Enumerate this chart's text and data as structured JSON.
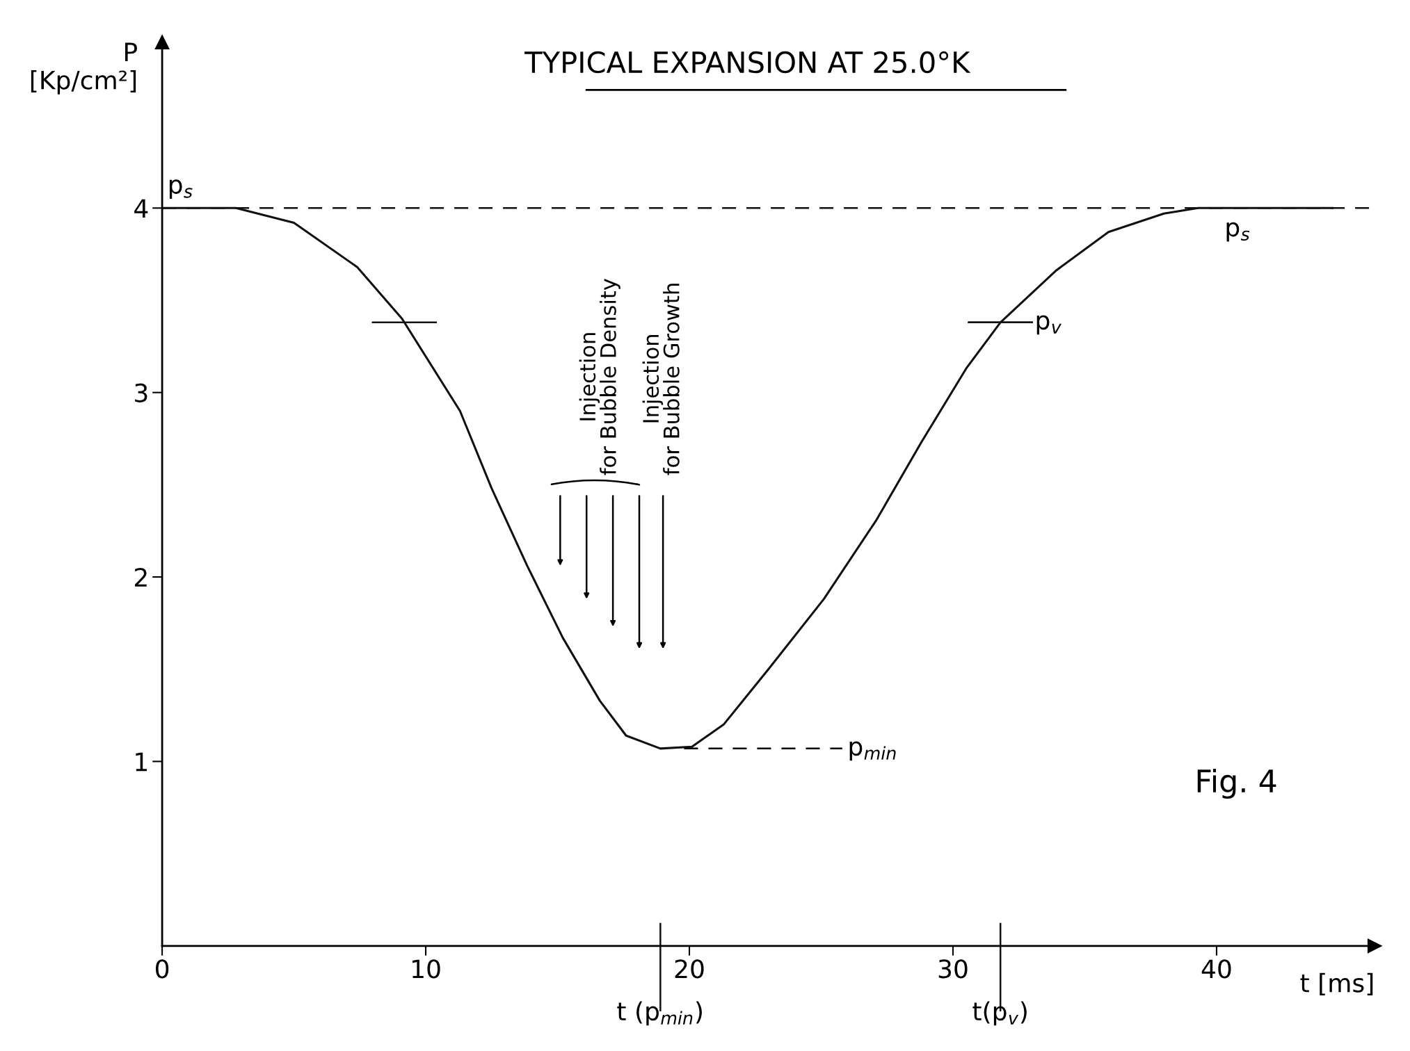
{
  "chart_data": {
    "type": "line",
    "title": "TYPICAL EXPANSION AT 25.0°K",
    "xlabel": "t [ms]",
    "ylabel": "P\n[Kp/cm²]",
    "x": [
      0,
      2.8,
      5.0,
      7.4,
      9.1,
      11.3,
      12.5,
      13.85,
      15.2,
      16.6,
      17.6,
      18.9,
      20.1,
      21.3,
      23.0,
      25.1,
      27.1,
      28.8,
      30.5,
      31.8,
      33.9,
      35.9,
      38.0,
      39.3,
      44.4
    ],
    "series": [
      {
        "color": "#111111",
        "values": [
          4.0,
          4.0,
          3.92,
          3.68,
          3.4,
          2.9,
          2.48,
          2.06,
          1.67,
          1.33,
          1.14,
          1.07,
          1.08,
          1.2,
          1.5,
          1.88,
          2.31,
          2.73,
          3.13,
          3.38,
          3.66,
          3.87,
          3.97,
          4.0,
          4.0
        ]
      }
    ],
    "xlim": [
      0,
      46
    ],
    "ylim": [
      0,
      4.9
    ],
    "xticks": [
      0,
      10,
      20,
      30,
      40
    ],
    "yticks": [
      1,
      2,
      3,
      4
    ],
    "ref_lines": [
      {
        "axis": "y",
        "value": 4,
        "label": "p$_{s}$",
        "line_style": "dashed",
        "color": "#111111"
      },
      {
        "axis": "y",
        "value": 3.38,
        "label": "p$_{v}$",
        "color": "#111111"
      },
      {
        "axis": "x",
        "value": 18.9,
        "label": "t (p$_{min}$)",
        "color": "#111111"
      },
      {
        "axis": "x",
        "value": 31.8,
        "label": "t(p$_{v}$)",
        "color": "#111111"
      }
    ],
    "annotations": [
      {
        "text": "p$_{s}$",
        "x": 39.3,
        "y": 4.0
      },
      {
        "text": "p$_{min}$",
        "x": 19.8,
        "y": 1.07
      },
      "Injection\nfor Bubble Density",
      "Injection\nfor Bubble Growth",
      "Fig. 4"
    ],
    "grid": false,
    "marker": "none",
    "line_style": "solid"
  }
}
